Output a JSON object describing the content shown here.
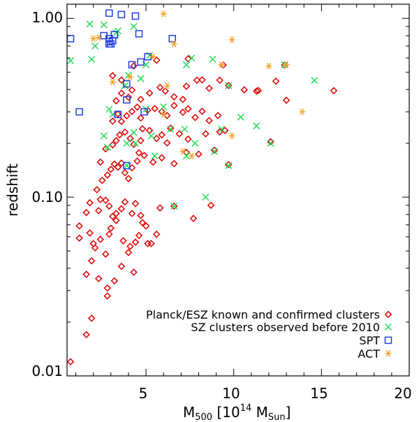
{
  "chart_data": {
    "type": "scatter",
    "title": "",
    "xlabel": {
      "main": "M",
      "sub": "500",
      "mid": " [10",
      "sup": "14",
      "mid2": " M",
      "sub2": "Sun",
      "end": "]"
    },
    "ylabel": "redshift",
    "xlim": [
      0.5,
      20
    ],
    "ylim": [
      0.01,
      1.2
    ],
    "yscale": "log",
    "grid": false,
    "legend_position": "bottom-right",
    "x_ticks": [
      {
        "value": 5,
        "label": "5"
      },
      {
        "value": 10,
        "label": "10"
      },
      {
        "value": 15,
        "label": "15"
      },
      {
        "value": 20,
        "label": "20"
      }
    ],
    "y_ticks": [
      {
        "value": 0.01,
        "label": "0.01"
      },
      {
        "value": 0.1,
        "label": "0.10"
      },
      {
        "value": 1.0,
        "label": "1.00"
      }
    ],
    "series": [
      {
        "name": "Planck/ESZ known and confirmed clusters",
        "marker": "diamond",
        "color": "#e00000",
        "points": [
          [
            0.7,
            0.012
          ],
          [
            1.6,
            0.017
          ],
          [
            1.9,
            0.021
          ],
          [
            1.6,
            0.037
          ],
          [
            1.9,
            0.044
          ],
          [
            2.3,
            0.035
          ],
          [
            2.8,
            0.031
          ],
          [
            2.8,
            0.028
          ],
          [
            3.2,
            0.034
          ],
          [
            3.6,
            0.041
          ],
          [
            4.3,
            0.038
          ],
          [
            4.1,
            0.053
          ],
          [
            1.2,
            0.059
          ],
          [
            1.2,
            0.069
          ],
          [
            1.8,
            0.063
          ],
          [
            2.0,
            0.055
          ],
          [
            2.1,
            0.052
          ],
          [
            2.4,
            0.058
          ],
          [
            2.7,
            0.048
          ],
          [
            2.9,
            0.062
          ],
          [
            3.0,
            0.067
          ],
          [
            3.3,
            0.074
          ],
          [
            3.7,
            0.057
          ],
          [
            4.0,
            0.049
          ],
          [
            4.4,
            0.056
          ],
          [
            4.6,
            0.061
          ],
          [
            4.8,
            0.072
          ],
          [
            5.1,
            0.055
          ],
          [
            5.3,
            0.055
          ],
          [
            5.6,
            0.062
          ],
          [
            1.6,
            0.082
          ],
          [
            1.8,
            0.093
          ],
          [
            2.3,
            0.084
          ],
          [
            2.4,
            0.097
          ],
          [
            2.7,
            0.096
          ],
          [
            2.9,
            0.089
          ],
          [
            3.1,
            0.078
          ],
          [
            3.3,
            0.081
          ],
          [
            3.6,
            0.086
          ],
          [
            3.8,
            0.094
          ],
          [
            4.2,
            0.081
          ],
          [
            4.4,
            0.092
          ],
          [
            4.7,
            0.079
          ],
          [
            5.0,
            0.069
          ],
          [
            5.8,
            0.087
          ],
          [
            6.6,
            0.089
          ],
          [
            7.7,
            0.076
          ],
          [
            8.7,
            0.09
          ],
          [
            2.2,
            0.11
          ],
          [
            2.5,
            0.124
          ],
          [
            2.8,
            0.133
          ],
          [
            3.0,
            0.143
          ],
          [
            3.2,
            0.153
          ],
          [
            3.4,
            0.147
          ],
          [
            3.6,
            0.155
          ],
          [
            3.8,
            0.137
          ],
          [
            4.0,
            0.127
          ],
          [
            4.2,
            0.146
          ],
          [
            4.5,
            0.159
          ],
          [
            4.6,
            0.177
          ],
          [
            4.9,
            0.171
          ],
          [
            5.4,
            0.157
          ],
          [
            5.9,
            0.166
          ],
          [
            6.6,
            0.154
          ],
          [
            7.3,
            0.178
          ],
          [
            8.0,
            0.174
          ],
          [
            8.9,
            0.183
          ],
          [
            9.7,
            0.152
          ],
          [
            2.4,
            0.157
          ],
          [
            2.7,
            0.186
          ],
          [
            3.1,
            0.196
          ],
          [
            3.3,
            0.207
          ],
          [
            3.5,
            0.223
          ],
          [
            3.8,
            0.231
          ],
          [
            4.1,
            0.213
          ],
          [
            4.3,
            0.197
          ],
          [
            4.7,
            0.207
          ],
          [
            4.8,
            0.241
          ],
          [
            5.2,
            0.236
          ],
          [
            5.6,
            0.213
          ],
          [
            5.9,
            0.223
          ],
          [
            6.2,
            0.201
          ],
          [
            6.4,
            0.243
          ],
          [
            6.9,
            0.226
          ],
          [
            7.4,
            0.211
          ],
          [
            8.4,
            0.226
          ],
          [
            9.2,
            0.232
          ],
          [
            9.5,
            0.236
          ],
          [
            12.1,
            0.204
          ],
          [
            3.1,
            0.266
          ],
          [
            3.4,
            0.292
          ],
          [
            3.6,
            0.265
          ],
          [
            3.9,
            0.285
          ],
          [
            4.2,
            0.301
          ],
          [
            4.5,
            0.319
          ],
          [
            4.7,
            0.277
          ],
          [
            5.1,
            0.306
          ],
          [
            5.5,
            0.313
          ],
          [
            5.9,
            0.301
          ],
          [
            6.2,
            0.286
          ],
          [
            6.6,
            0.325
          ],
          [
            7.1,
            0.298
          ],
          [
            7.4,
            0.312
          ],
          [
            7.8,
            0.279
          ],
          [
            8.2,
            0.302
          ],
          [
            8.6,
            0.268
          ],
          [
            9.1,
            0.286
          ],
          [
            3.3,
            0.346
          ],
          [
            3.6,
            0.381
          ],
          [
            4.0,
            0.362
          ],
          [
            4.2,
            0.397
          ],
          [
            4.7,
            0.352
          ],
          [
            5.2,
            0.382
          ],
          [
            5.8,
            0.411
          ],
          [
            6.1,
            0.392
          ],
          [
            6.6,
            0.364
          ],
          [
            7.1,
            0.352
          ],
          [
            7.3,
            0.417
          ],
          [
            7.9,
            0.451
          ],
          [
            8.6,
            0.406
          ],
          [
            9.2,
            0.451
          ],
          [
            9.7,
            0.421
          ],
          [
            10.6,
            0.398
          ],
          [
            11.3,
            0.392
          ],
          [
            11.4,
            0.395
          ],
          [
            12.4,
            0.445
          ],
          [
            13.0,
            0.348
          ],
          [
            15.7,
            0.394
          ],
          [
            3.1,
            0.478
          ],
          [
            3.6,
            0.452
          ],
          [
            4.3,
            0.542
          ],
          [
            5.6,
            0.583
          ],
          [
            7.4,
            0.594
          ],
          [
            8.2,
            0.453
          ],
          [
            9.4,
            0.548
          ],
          [
            12.9,
            0.548
          ]
        ]
      },
      {
        "name": "SZ clusters observed before 2010",
        "marker": "cross",
        "color": "#22dd55",
        "points": [
          [
            0.7,
            0.58
          ],
          [
            1.8,
            0.93
          ],
          [
            2.1,
            0.7
          ],
          [
            1.9,
            0.59
          ],
          [
            2.6,
            0.92
          ],
          [
            3.3,
            0.83
          ],
          [
            3.4,
            0.85
          ],
          [
            4.3,
            0.9
          ],
          [
            5.0,
            0.55
          ],
          [
            5.2,
            0.62
          ],
          [
            7.3,
            0.55
          ],
          [
            7.6,
            0.6
          ],
          [
            8.8,
            0.59
          ],
          [
            12.9,
            0.55
          ],
          [
            14.6,
            0.45
          ],
          [
            3.8,
            0.42
          ],
          [
            4.0,
            0.48
          ],
          [
            4.7,
            0.46
          ],
          [
            9.7,
            0.42
          ],
          [
            10.4,
            0.28
          ],
          [
            11.3,
            0.25
          ],
          [
            2.9,
            0.31
          ],
          [
            3.1,
            0.29
          ],
          [
            5.0,
            0.31
          ],
          [
            6.0,
            0.32
          ],
          [
            2.6,
            0.22
          ],
          [
            2.8,
            0.19
          ],
          [
            3.9,
            0.2
          ],
          [
            5.3,
            0.22
          ],
          [
            6.4,
            0.24
          ],
          [
            7.2,
            0.24
          ],
          [
            7.8,
            0.2
          ],
          [
            9.3,
            0.24
          ],
          [
            12.1,
            0.2
          ],
          [
            9.7,
            0.15
          ],
          [
            8.4,
            0.1
          ],
          [
            6.6,
            0.089
          ],
          [
            7.3,
            0.17
          ],
          [
            5.5,
            0.17
          ],
          [
            4.3,
            0.23
          ],
          [
            3.9,
            0.15
          ],
          [
            8.9,
            0.18
          ],
          [
            4.4,
            0.2
          ]
        ]
      },
      {
        "name": "SPT",
        "marker": "square",
        "color": "#1f3fdd",
        "points": [
          [
            0.7,
            0.77
          ],
          [
            1.2,
            0.3
          ],
          [
            2.9,
            1.07
          ],
          [
            3.6,
            1.05
          ],
          [
            4.4,
            1.03
          ],
          [
            2.6,
            0.8
          ],
          [
            2.9,
            0.77
          ],
          [
            2.9,
            0.74
          ],
          [
            3.0,
            0.72
          ],
          [
            3.1,
            0.75
          ],
          [
            3.2,
            0.81
          ],
          [
            2.9,
            0.72
          ],
          [
            4.7,
            0.57
          ],
          [
            5.1,
            0.61
          ],
          [
            6.5,
            0.77
          ],
          [
            3.9,
            0.35
          ],
          [
            3.9,
            0.43
          ],
          [
            4.2,
            0.55
          ],
          [
            3.4,
            0.29
          ],
          [
            3.9,
            0.15
          ],
          [
            4.9,
            0.3
          ],
          [
            4.6,
            0.82
          ]
        ]
      },
      {
        "name": "ACT",
        "marker": "asterisk",
        "color": "#f0a020",
        "points": [
          [
            2.0,
            0.77
          ],
          [
            2.3,
            0.78
          ],
          [
            3.1,
            0.44
          ],
          [
            4.1,
            0.47
          ],
          [
            6.0,
            1.06
          ],
          [
            6.6,
            0.72
          ],
          [
            6.2,
            0.42
          ],
          [
            5.4,
            0.61
          ],
          [
            6.0,
            0.29
          ],
          [
            9.3,
            0.55
          ],
          [
            9.9,
            0.76
          ],
          [
            12.0,
            0.54
          ],
          [
            13.0,
            0.55
          ],
          [
            13.9,
            0.3
          ],
          [
            9.9,
            0.22
          ],
          [
            7.6,
            0.17
          ],
          [
            7.1,
            0.18
          ]
        ]
      }
    ]
  }
}
